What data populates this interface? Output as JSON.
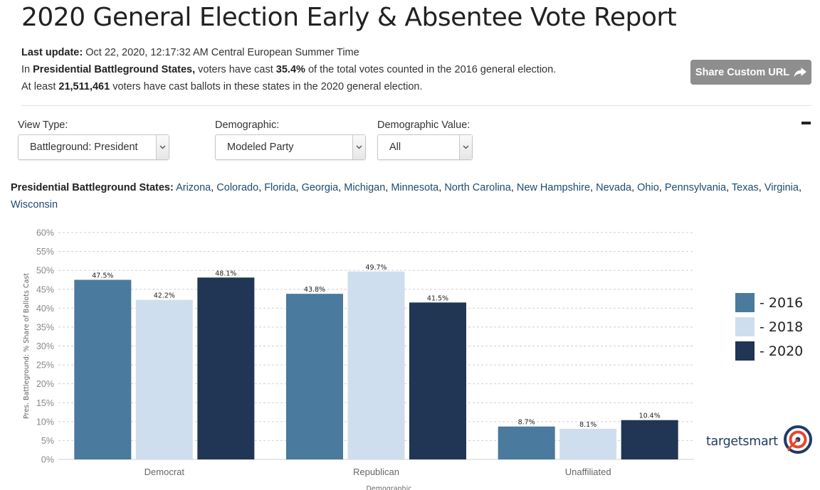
{
  "header": {
    "title": "2020 General Election Early & Absentee Vote Report",
    "last_update_label": "Last update:",
    "last_update_value": " Oct 22, 2020, 12:17:32 AM Central European Summer Time",
    "line2_pre": "In ",
    "line2_bold": "Presidential Battleground States,",
    "line2_mid": " voters have cast ",
    "line2_pct": "35.4%",
    "line2_post": " of the total votes counted in the 2016 general election.",
    "line3_pre": "At least ",
    "line3_num": "21,511,461",
    "line3_post": " voters have cast ballots in these states in the 2020 general election."
  },
  "share_button": {
    "label": "Share Custom URL",
    "icon": "share-icon"
  },
  "filters": [
    {
      "label": "View Type:",
      "value": "Battleground: President"
    },
    {
      "label": "Demographic:",
      "value": "Modeled Party"
    },
    {
      "label": "Demographic Value:",
      "value": "All"
    }
  ],
  "states": {
    "label": "Presidential Battleground States:",
    "list": [
      "Arizona",
      "Colorado",
      "Florida",
      "Georgia",
      "Michigan",
      "Minnesota",
      "North Carolina",
      "New Hampshire",
      "Nevada",
      "Ohio",
      "Pennsylvania",
      "Texas",
      "Virginia",
      "Wisconsin"
    ]
  },
  "colors": {
    "2016": "#4a7a9d",
    "2018": "#cfdeee",
    "2020": "#213554",
    "brand": "#1f3c66",
    "accent": "#e8452c"
  },
  "brand": {
    "name": "targetsmart"
  },
  "chart_data": {
    "type": "bar",
    "categories": [
      "Democrat",
      "Republican",
      "Unaffiliated"
    ],
    "series": [
      {
        "name": "- 2016",
        "values": [
          47.5,
          43.8,
          8.7
        ]
      },
      {
        "name": "- 2018",
        "values": [
          42.2,
          49.7,
          8.1
        ]
      },
      {
        "name": "- 2020",
        "values": [
          48.1,
          41.5,
          10.4
        ]
      }
    ],
    "data_labels": [
      [
        "47.5%",
        "43.8%",
        "8.7%"
      ],
      [
        "42.2%",
        "49.7%",
        "8.1%"
      ],
      [
        "48.1%",
        "41.5%",
        "10.4%"
      ]
    ],
    "ylabel": "Pres. Battleground: % Share of Ballots Cast",
    "xlabel": "Demographic",
    "ylim": [
      0,
      60
    ],
    "yticks": [
      0,
      5,
      10,
      15,
      20,
      25,
      30,
      35,
      40,
      45,
      50,
      55,
      60
    ],
    "ytick_suffix": "%",
    "grid": "horizontal dashed",
    "legend_position": "right"
  }
}
